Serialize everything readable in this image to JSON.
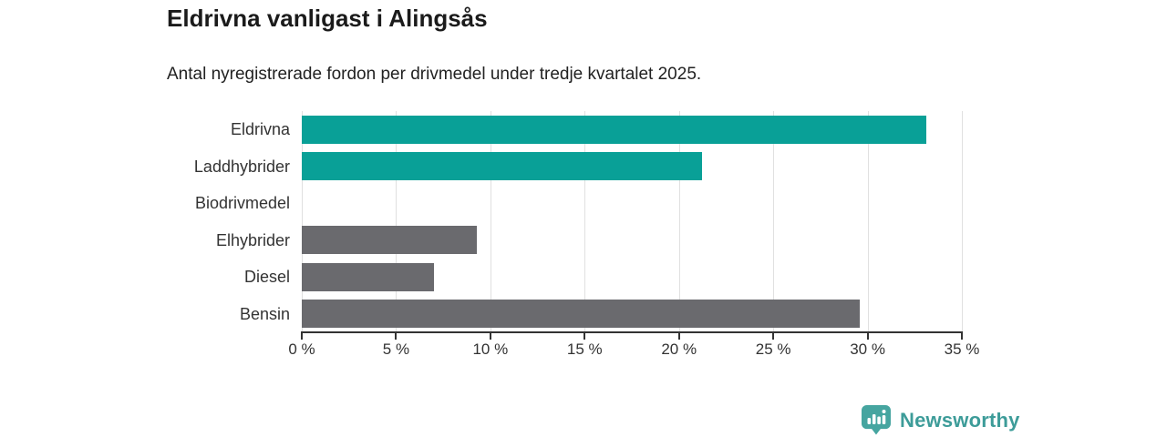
{
  "header": {
    "title": "Eldrivna vanligast i Alingsås",
    "subtitle": "Antal nyregistrerade fordon per drivmedel under tredje kvartalet 2025."
  },
  "chart_data": {
    "type": "bar",
    "orientation": "horizontal",
    "categories": [
      "Eldrivna",
      "Laddhybrider",
      "Biodrivmedel",
      "Elhybrider",
      "Diesel",
      "Bensin"
    ],
    "values": [
      33.1,
      21.2,
      0,
      9.3,
      7.0,
      29.6
    ],
    "bar_colors": [
      "#09a097",
      "#09a097",
      "#6a6a6e",
      "#6a6a6e",
      "#6a6a6e",
      "#6a6a6e"
    ],
    "title": "Eldrivna vanligast i Alingsås",
    "subtitle": "Antal nyregistrerade fordon per drivmedel under tredje kvartalet 2025.",
    "xlabel": "",
    "ylabel": "",
    "xlim": [
      0,
      35
    ],
    "x_ticks": [
      0,
      5,
      10,
      15,
      20,
      25,
      30,
      35
    ],
    "x_tick_labels": [
      "0 %",
      "5 %",
      "10 %",
      "15 %",
      "20 %",
      "25 %",
      "30 %",
      "35 %"
    ],
    "grid": "vertical",
    "legend": "none"
  },
  "branding": {
    "logo_label": "Newsworthy",
    "logo_icon": "newsworthy-chart-bubble-icon",
    "icon_color": "#46a5a0",
    "text_color": "#3d9c99"
  },
  "colors": {
    "accent_teal": "#09a097",
    "neutral_gray": "#6a6a6e",
    "axis": "#333333",
    "gridline": "#e0e0e0",
    "background": "#ffffff"
  }
}
